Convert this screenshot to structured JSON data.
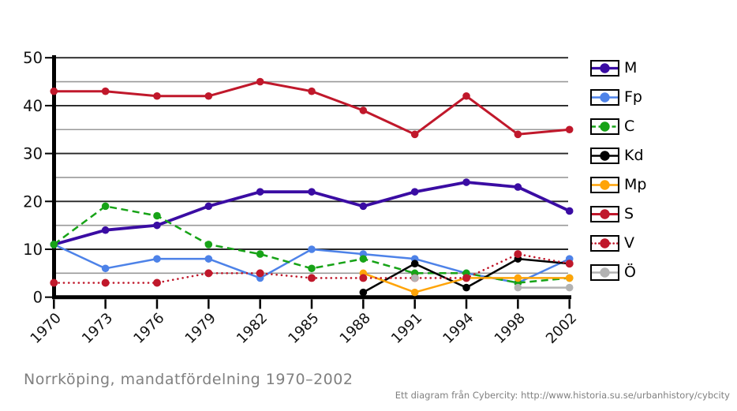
{
  "title": "Norrköping, mandatfördelning 1970–2002",
  "attribution": "Ett diagram från Cybercity: http://www.historia.su.se/urbanhistory/cybcity",
  "chart_data": {
    "type": "line",
    "title": "Norrköping, mandatfördelning 1970–2002",
    "x_tick_labels": [
      "1970",
      "1973",
      "1976",
      "1979",
      "1982",
      "1985",
      "1988",
      "1991",
      "1994",
      "1998",
      "2002"
    ],
    "ylim": [
      0,
      50
    ],
    "y_major_ticks": [
      0,
      10,
      20,
      30,
      40,
      50
    ],
    "y_minor_gridlines": [
      5,
      15,
      25,
      35,
      45
    ],
    "grid": true,
    "legend_position": "right",
    "series": [
      {
        "name": "M",
        "color": "#3a0ca3",
        "style": "solid",
        "width": 3.8,
        "values": [
          11,
          14,
          15,
          19,
          22,
          22,
          19,
          22,
          24,
          23,
          18
        ]
      },
      {
        "name": "Fp",
        "color": "#4d82e8",
        "style": "solid",
        "width": 2.5,
        "values": [
          11,
          6,
          8,
          8,
          4,
          10,
          9,
          8,
          5,
          3,
          8
        ]
      },
      {
        "name": "C",
        "color": "#17a317",
        "style": "dashed",
        "width": 2.5,
        "values": [
          11,
          19,
          17,
          11,
          9,
          6,
          8,
          5,
          5,
          3,
          4
        ]
      },
      {
        "name": "Kd",
        "color": "#000000",
        "style": "solid",
        "width": 2.5,
        "values": [
          null,
          null,
          null,
          null,
          null,
          null,
          1,
          7,
          2,
          8,
          7
        ]
      },
      {
        "name": "Mp",
        "color": "#ffa408",
        "style": "solid",
        "width": 2.5,
        "values": [
          null,
          null,
          null,
          null,
          null,
          null,
          5,
          1,
          4,
          4,
          4
        ]
      },
      {
        "name": "S",
        "color": "#c0182b",
        "style": "solid",
        "width": 3.0,
        "values": [
          43,
          43,
          42,
          42,
          45,
          43,
          39,
          34,
          42,
          34,
          35
        ]
      },
      {
        "name": "V",
        "color": "#c0182b",
        "style": "dotted",
        "width": 2.6,
        "values": [
          3,
          3,
          3,
          5,
          5,
          4,
          4,
          4,
          4,
          9,
          7
        ]
      },
      {
        "name": "Ö",
        "color": "#b3b3b3",
        "style": "solid",
        "width": 2.5,
        "values": [
          null,
          null,
          null,
          null,
          null,
          null,
          null,
          4,
          null,
          2,
          2
        ]
      }
    ]
  },
  "axis_colors": {
    "axis": "#000000",
    "major_grid": "#262626",
    "minor_grid": "#999999",
    "tick_label": "#111111"
  }
}
